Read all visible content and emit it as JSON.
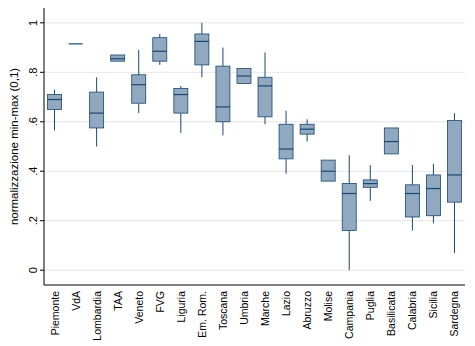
{
  "chart_data": {
    "type": "box",
    "y_label": "normalizzazione min-max (0,1)",
    "categories": [
      "Piemonte",
      "VdA",
      "Lombardia",
      "TAA",
      "Veneto",
      "FVG",
      "Liguria",
      "Em. Rom.",
      "Toscana",
      "Umbria",
      "Marche",
      "Lazio",
      "Abruzzo",
      "Molise",
      "Campania",
      "Puglia",
      "Basilicata",
      "Calabria",
      "Sicilia",
      "Sardegna"
    ],
    "min": [
      0.565,
      0.915,
      0.5,
      0.845,
      0.635,
      0.83,
      0.555,
      0.78,
      0.545,
      0.755,
      0.59,
      0.39,
      0.52,
      0.36,
      0.0,
      0.28,
      0.47,
      0.16,
      0.19,
      0.07
    ],
    "q1": [
      0.65,
      0.915,
      0.575,
      0.845,
      0.675,
      0.845,
      0.635,
      0.83,
      0.6,
      0.755,
      0.62,
      0.45,
      0.55,
      0.36,
      0.16,
      0.335,
      0.47,
      0.215,
      0.22,
      0.275
    ],
    "median": [
      0.69,
      0.915,
      0.635,
      0.855,
      0.75,
      0.885,
      0.71,
      0.925,
      0.66,
      0.785,
      0.745,
      0.49,
      0.57,
      0.4,
      0.31,
      0.35,
      0.52,
      0.31,
      0.33,
      0.385
    ],
    "q3": [
      0.71,
      0.915,
      0.72,
      0.87,
      0.79,
      0.94,
      0.735,
      0.955,
      0.825,
      0.815,
      0.78,
      0.59,
      0.59,
      0.445,
      0.35,
      0.365,
      0.575,
      0.345,
      0.385,
      0.605
    ],
    "max": [
      0.73,
      0.915,
      0.78,
      0.87,
      0.89,
      0.955,
      0.745,
      1.0,
      0.9,
      0.815,
      0.88,
      0.645,
      0.61,
      0.445,
      0.465,
      0.425,
      0.575,
      0.425,
      0.43,
      0.635
    ],
    "color": "#90a8c0",
    "ylim": [
      -0.06,
      1.06
    ],
    "yticks": [
      0,
      {
        "value": 0.2,
        "label": ".2"
      },
      {
        "value": 0.4,
        "label": ".4"
      },
      {
        "value": 0.6,
        "label": ".6"
      },
      {
        "value": 0.8,
        "label": ".8"
      },
      1
    ],
    "grid": true
  }
}
